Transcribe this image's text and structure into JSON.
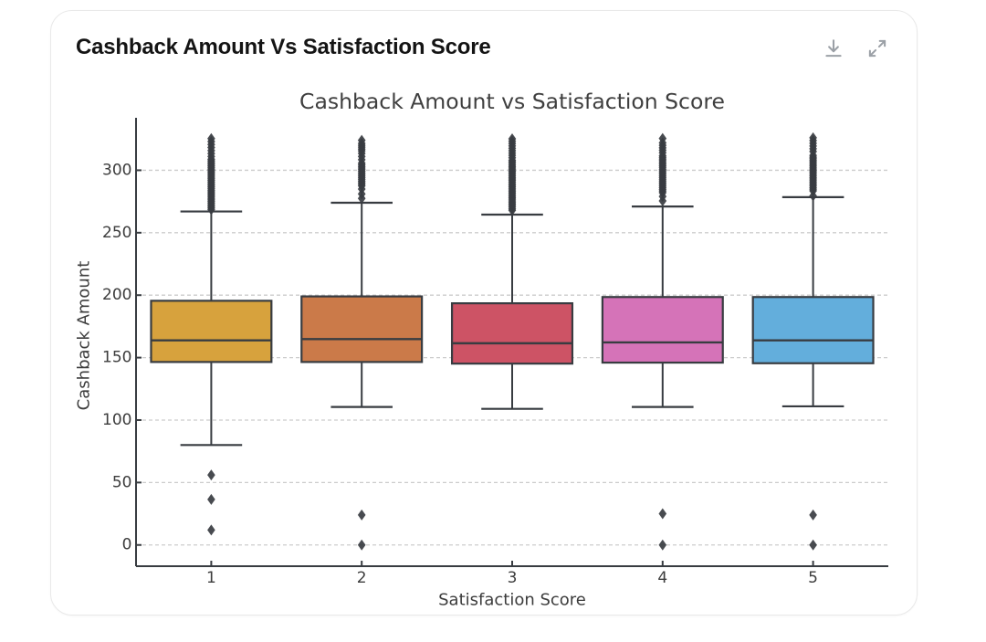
{
  "page": {
    "background": "#ffffff"
  },
  "card": {
    "title": "Cashback Amount Vs Satisfaction Score",
    "title_color": "#141414",
    "background": "#ffffff",
    "border_color": "#e9e9e9",
    "toolbar": {
      "icon_color": "#9ba0a6",
      "download_icon": "download",
      "expand_icon": "expand"
    }
  },
  "chart_data": {
    "type": "box",
    "title": "Cashback Amount vs Satisfaction Score",
    "xlabel": "Satisfaction Score",
    "ylabel": "Cashback Amount",
    "categories": [
      "1",
      "2",
      "3",
      "4",
      "5"
    ],
    "ylim": [
      -17,
      342
    ],
    "yticks": [
      0,
      50,
      100,
      150,
      200,
      250,
      300
    ],
    "grid": "horizontal-dashed",
    "legend": "none",
    "text_color": "#3c3c3c",
    "line_color": "#383c41",
    "grid_color": "#cccccc",
    "groups": [
      {
        "category": "1",
        "color": "#d7a23d",
        "whisker_low": 80,
        "q1": 146.5,
        "median": 163.8,
        "q3": 195.5,
        "whisker_high": 267,
        "outliers_low": [
          56,
          36.5,
          12
        ],
        "outliers_high": [
          268.5,
          269.8,
          271.1,
          272.4,
          273.7,
          275.0,
          276.3,
          277.6,
          278.9,
          280.2,
          281.5,
          282.8,
          284.1,
          285.4,
          286.7,
          288.0,
          289.3,
          290.6,
          291.9,
          293.2,
          294.5,
          295.8,
          297.1,
          298.4,
          299.7,
          301.0,
          302.3,
          303.6,
          304.9,
          306.2,
          307.5,
          308.8,
          311,
          313.4,
          315.8,
          318.2,
          320.6,
          323.0,
          325.4
        ]
      },
      {
        "category": "2",
        "color": "#cb7a49",
        "whisker_low": 110.5,
        "q1": 146.5,
        "median": 164.8,
        "q3": 199,
        "whisker_high": 274,
        "outliers_low": [
          24,
          0
        ],
        "outliers_high": [
          277.5,
          281,
          285,
          287.5,
          288.8,
          290.1,
          291.4,
          292.7,
          294.0,
          295.3,
          296.6,
          297.9,
          299.2,
          300.5,
          301.8,
          303.1,
          304.4,
          305.7,
          308.5,
          311.0,
          313.5,
          315.5,
          317.0,
          318.5,
          320.0,
          321.5,
          324
        ]
      },
      {
        "category": "3",
        "color": "#cd5365",
        "whisker_low": 109,
        "q1": 145.2,
        "median": 161.5,
        "q3": 193.5,
        "whisker_high": 264.5,
        "outliers_low": [],
        "outliers_high": [
          268,
          269.2,
          270.5,
          271.8,
          273.0,
          274.2,
          275.5,
          276.8,
          278.0,
          279.2,
          280.5,
          281.8,
          283.0,
          284.2,
          285.5,
          286.8,
          288.0,
          289.2,
          290.5,
          291.8,
          293.0,
          294.2,
          295.5,
          296.8,
          298.0,
          299.2,
          300.5,
          301.8,
          303.0,
          304.2,
          305.5,
          306.8,
          308.0,
          310,
          311.9,
          313.8,
          315.7,
          317.6,
          319.5,
          321.4,
          323.3,
          325.2
        ]
      },
      {
        "category": "4",
        "color": "#d573b8",
        "whisker_low": 110.5,
        "q1": 146,
        "median": 162.2,
        "q3": 198.5,
        "whisker_high": 271,
        "outliers_low": [
          25,
          0
        ],
        "outliers_high": [
          275.5,
          279,
          282,
          283.4,
          284.7,
          286.1,
          287.4,
          288.8,
          290.1,
          291.5,
          292.8,
          294.2,
          295.5,
          296.9,
          298.2,
          299.6,
          300.9,
          302.3,
          303.6,
          305.0,
          306.3,
          307.7,
          309.0,
          310.4,
          311.7,
          314,
          316.0,
          318.0,
          320.0,
          322.0,
          325.5
        ]
      },
      {
        "category": "5",
        "color": "#63aedc",
        "whisker_low": 111,
        "q1": 145.5,
        "median": 163.8,
        "q3": 198.5,
        "whisker_high": 278.5,
        "outliers_low": [
          24,
          0
        ],
        "outliers_high": [
          279.5,
          283.5,
          284.9,
          286.2,
          287.6,
          288.9,
          290.3,
          291.6,
          293.0,
          294.3,
          295.7,
          297.0,
          298.4,
          299.7,
          301.1,
          302.4,
          303.8,
          305.1,
          306.5,
          307.8,
          309.2,
          310.5,
          311.9,
          315,
          317.2,
          319.4,
          321.6,
          323.8,
          326.0
        ]
      }
    ]
  }
}
